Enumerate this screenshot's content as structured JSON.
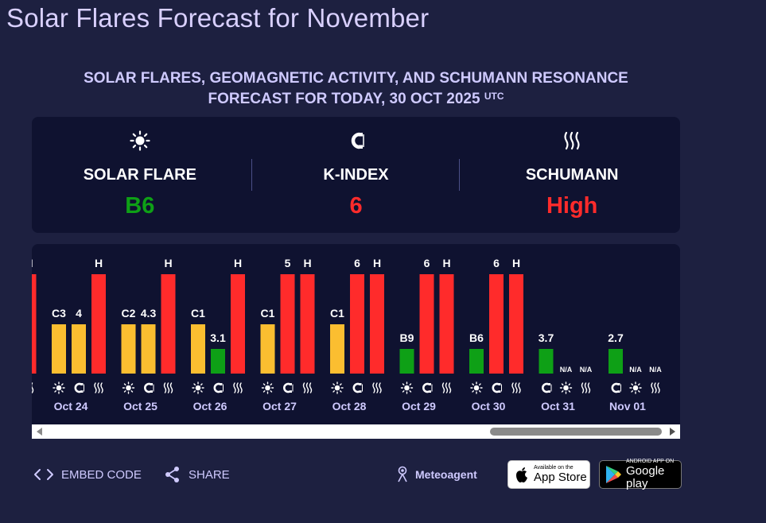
{
  "page": {
    "title": "Solar Flares Forecast for November",
    "subtitle_line1": "SOLAR FLARES, GEOMAGNETIC ACTIVITY, AND SCHUMANN RESONANCE",
    "subtitle_line2": "FORECAST FOR TODAY, 30 OCT 2025",
    "subtitle_sup": "UTC"
  },
  "summary": {
    "solar_flare": {
      "label": "SOLAR FLARE",
      "value": "B6",
      "color": "#0ea016",
      "icon": "sun-icon"
    },
    "k_index": {
      "label": "K-INDEX",
      "value": "6",
      "color": "#ff2b2b",
      "icon": "magnet-icon"
    },
    "schumann": {
      "label": "SCHUMANN",
      "value": "High",
      "color": "#ff2b2b",
      "icon": "waves-icon"
    }
  },
  "colors": {
    "yellow": "#fbbe30",
    "red": "#ff2b2b",
    "green": "#0ea016",
    "card_bg": "#0f1230",
    "page_bg": "#1d2040",
    "accent_text": "#cfcaff"
  },
  "chart_data": {
    "type": "bar",
    "levels": {
      "low": 1,
      "medium": 2,
      "high": 3
    },
    "days": [
      {
        "date": "",
        "bars": [
          {
            "kind": "schumann",
            "label": "H",
            "level": 3,
            "color": "red"
          }
        ]
      },
      {
        "date": "Oct 24",
        "bars": [
          {
            "kind": "flare",
            "label": "C3",
            "level": 2,
            "color": "yellow"
          },
          {
            "kind": "kindex",
            "label": "4",
            "level": 2,
            "color": "yellow"
          },
          {
            "kind": "schumann",
            "label": "H",
            "level": 3,
            "color": "red"
          }
        ]
      },
      {
        "date": "Oct 25",
        "bars": [
          {
            "kind": "flare",
            "label": "C2",
            "level": 2,
            "color": "yellow"
          },
          {
            "kind": "kindex",
            "label": "4.3",
            "level": 2,
            "color": "yellow"
          },
          {
            "kind": "schumann",
            "label": "H",
            "level": 3,
            "color": "red"
          }
        ]
      },
      {
        "date": "Oct 26",
        "bars": [
          {
            "kind": "flare",
            "label": "C1",
            "level": 2,
            "color": "yellow"
          },
          {
            "kind": "kindex",
            "label": "3.1",
            "level": 1,
            "color": "green"
          },
          {
            "kind": "schumann",
            "label": "H",
            "level": 3,
            "color": "red"
          }
        ]
      },
      {
        "date": "Oct 27",
        "bars": [
          {
            "kind": "flare",
            "label": "C1",
            "level": 2,
            "color": "yellow"
          },
          {
            "kind": "kindex",
            "label": "5",
            "level": 3,
            "color": "red"
          },
          {
            "kind": "schumann",
            "label": "H",
            "level": 3,
            "color": "red"
          }
        ]
      },
      {
        "date": "Oct 28",
        "bars": [
          {
            "kind": "flare",
            "label": "C1",
            "level": 2,
            "color": "yellow"
          },
          {
            "kind": "kindex",
            "label": "6",
            "level": 3,
            "color": "red"
          },
          {
            "kind": "schumann",
            "label": "H",
            "level": 3,
            "color": "red"
          }
        ]
      },
      {
        "date": "Oct 29",
        "bars": [
          {
            "kind": "flare",
            "label": "B9",
            "level": 1,
            "color": "green"
          },
          {
            "kind": "kindex",
            "label": "6",
            "level": 3,
            "color": "red"
          },
          {
            "kind": "schumann",
            "label": "H",
            "level": 3,
            "color": "red"
          }
        ]
      },
      {
        "date": "Oct 30",
        "bars": [
          {
            "kind": "flare",
            "label": "B6",
            "level": 1,
            "color": "green"
          },
          {
            "kind": "kindex",
            "label": "6",
            "level": 3,
            "color": "red"
          },
          {
            "kind": "schumann",
            "label": "H",
            "level": 3,
            "color": "red"
          }
        ]
      },
      {
        "date": "Oct 31",
        "bars": [
          {
            "kind": "kindex",
            "label": "3.7",
            "level": 1,
            "color": "green"
          },
          {
            "kind": "flare",
            "label": "N/A",
            "level": 0,
            "color": "none"
          },
          {
            "kind": "schumann",
            "label": "N/A",
            "level": 0,
            "color": "none"
          }
        ]
      },
      {
        "date": "Nov 01",
        "bars": [
          {
            "kind": "kindex",
            "label": "2.7",
            "level": 1,
            "color": "green"
          },
          {
            "kind": "flare",
            "label": "N/A",
            "level": 0,
            "color": "none"
          },
          {
            "kind": "schumann",
            "label": "N/A",
            "level": 0,
            "color": "none"
          }
        ]
      }
    ]
  },
  "footer": {
    "embed_label": "EMBED CODE",
    "share_label": "SHARE",
    "brand_label": "Meteoagent",
    "appstore_small": "Available on the",
    "appstore_big": "App Store",
    "gplay_small": "ANDROID APP ON",
    "gplay_big": "Google play"
  }
}
